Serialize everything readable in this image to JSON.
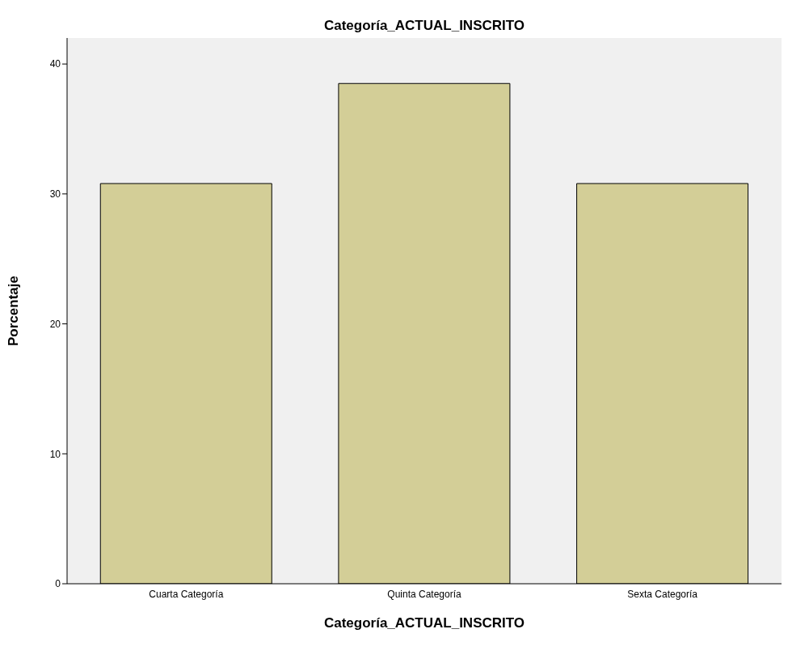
{
  "chart_data": {
    "type": "bar",
    "title": "Categoría_ACTUAL_INSCRITO",
    "xlabel": "Categoría_ACTUAL_INSCRITO",
    "ylabel": "Porcentaje",
    "categories": [
      "Cuarta Categoría",
      "Quinta Categoría",
      "Sexta Categoría"
    ],
    "values": [
      30.8,
      38.5,
      30.8
    ],
    "color": "#d3ce97",
    "ylim": [
      0,
      42
    ],
    "yticks": [
      0,
      10,
      20,
      30,
      40
    ]
  }
}
